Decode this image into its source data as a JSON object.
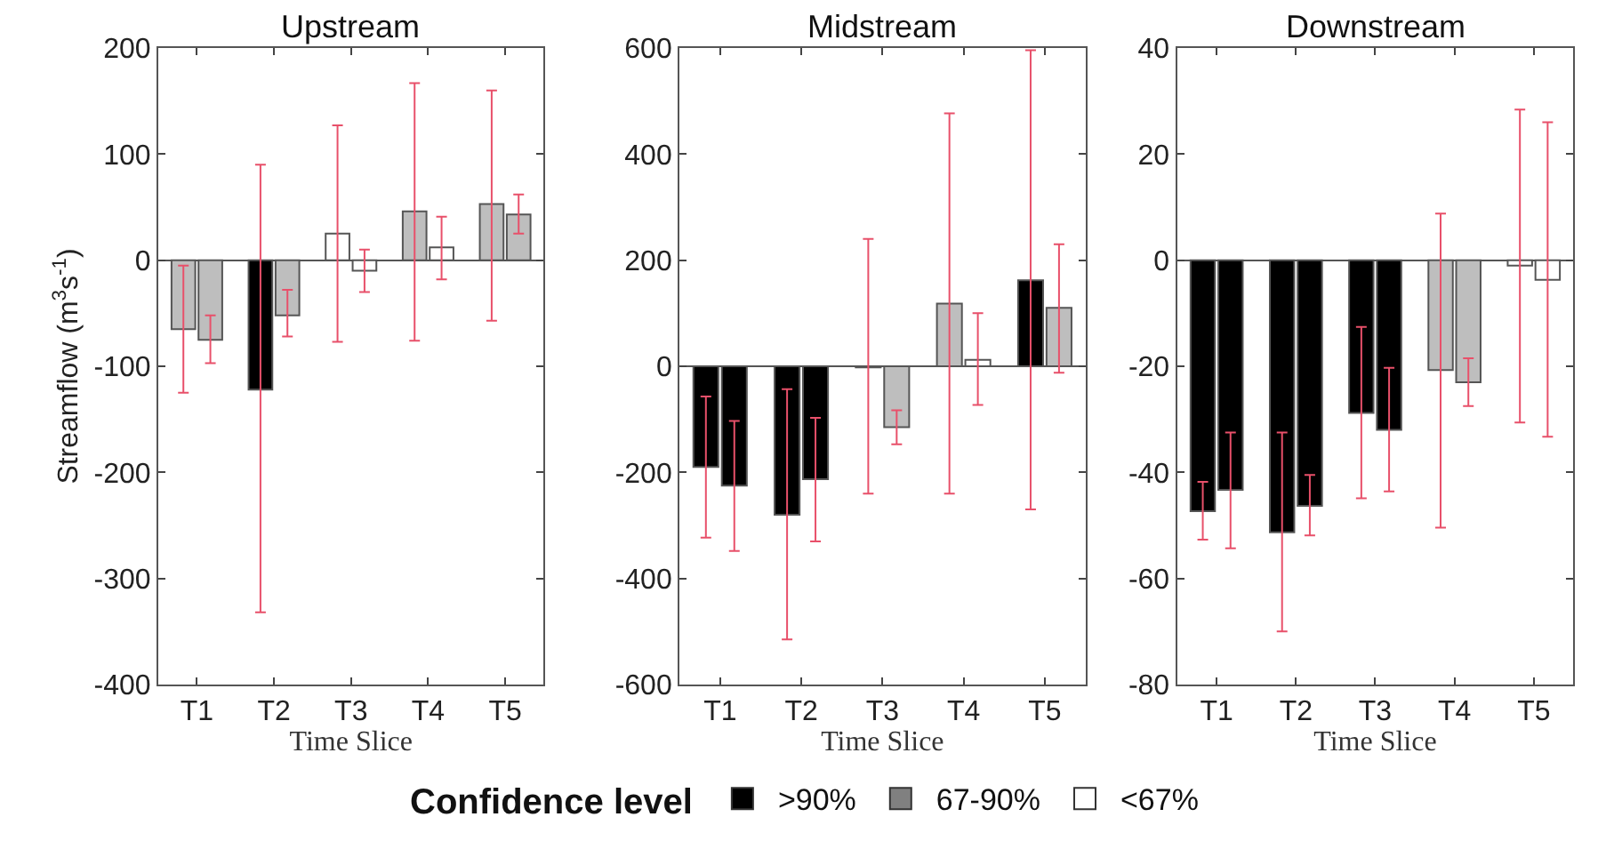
{
  "chart_data": [
    {
      "type": "bar",
      "title": "Upstream",
      "xlabel": "Time Slice",
      "ylabel": "Streamflow (m$^{3}$s$^{-1}$)",
      "categories": [
        "T1",
        "T2",
        "T3",
        "T4",
        "T5"
      ],
      "ylim": [
        -400,
        200
      ],
      "yticks": [
        -400,
        -300,
        -200,
        -100,
        0,
        100,
        200
      ],
      "series": [
        {
          "colors": [
            "#bebebe",
            "#000000",
            "#ffffff",
            "#bebebe",
            "#bebebe"
          ],
          "values": [
            -65,
            -122,
            25,
            46,
            53
          ],
          "errors": [
            [
              -125,
              -5
            ],
            [
              -332,
              90
            ],
            [
              -77,
              127
            ],
            [
              -76,
              167
            ],
            [
              -57,
              160
            ]
          ]
        },
        {
          "colors": [
            "#bebebe",
            "#bebebe",
            "#ffffff",
            "#ffffff",
            "#bebebe"
          ],
          "values": [
            -75,
            -52,
            -10,
            12,
            43
          ],
          "errors": [
            [
              -97,
              -52
            ],
            [
              -72,
              -28
            ],
            [
              -30,
              10
            ],
            [
              -18,
              41
            ],
            [
              25,
              62
            ]
          ]
        }
      ]
    },
    {
      "type": "bar",
      "title": "Midstream",
      "xlabel": "Time Slice",
      "categories": [
        "T1",
        "T2",
        "T3",
        "T4",
        "T5"
      ],
      "ylim": [
        -600,
        600
      ],
      "yticks": [
        -600,
        -400,
        -200,
        0,
        200,
        400,
        600
      ],
      "series": [
        {
          "colors": [
            "#000000",
            "#000000",
            "#ffffff",
            "#bebebe",
            "#000000"
          ],
          "values": [
            -190,
            -280,
            -2,
            118,
            162
          ],
          "errors": [
            [
              -323,
              -57
            ],
            [
              -515,
              -43
            ],
            [
              -240,
              240
            ],
            [
              -240,
              477
            ],
            [
              -270,
              596
            ]
          ]
        },
        {
          "colors": [
            "#000000",
            "#000000",
            "#bebebe",
            "#ffffff",
            "#bebebe"
          ],
          "values": [
            -225,
            -213,
            -115,
            12,
            110
          ],
          "errors": [
            [
              -348,
              -103
            ],
            [
              -330,
              -97
            ],
            [
              -147,
              -83
            ],
            [
              -73,
              100
            ],
            [
              -12,
              230
            ]
          ]
        }
      ]
    },
    {
      "type": "bar",
      "title": "Downstream",
      "xlabel": "Time Slice",
      "categories": [
        "T1",
        "T2",
        "T3",
        "T4",
        "T5"
      ],
      "ylim": [
        -80,
        40
      ],
      "yticks": [
        -80,
        -60,
        -40,
        -20,
        0,
        20,
        40
      ],
      "series": [
        {
          "colors": [
            "#000000",
            "#000000",
            "#000000",
            "#bebebe",
            "#ffffff"
          ],
          "values": [
            -47.3,
            -51.3,
            -28.8,
            -20.7,
            -1.0
          ],
          "errors": [
            [
              -52.7,
              -41.8
            ],
            [
              -70,
              -32.5
            ],
            [
              -44.9,
              -12.6
            ],
            [
              -50.4,
              8.8
            ],
            [
              -30.6,
              28.4
            ]
          ]
        },
        {
          "colors": [
            "#000000",
            "#000000",
            "#000000",
            "#bebebe",
            "#ffffff"
          ],
          "values": [
            -43.3,
            -46.3,
            -32.0,
            -23.0,
            -3.7
          ],
          "errors": [
            [
              -54.3,
              -32.5
            ],
            [
              -51.9,
              -40.5
            ],
            [
              -43.6,
              -20.3
            ],
            [
              -27.5,
              -18.5
            ],
            [
              -33.3,
              26.0
            ]
          ]
        }
      ]
    },
    {
      "type": "other",
      "legend_title": "Confidence level",
      "categories": [
        ">90%",
        "67-90%",
        "<67%"
      ],
      "colors": [
        "#000000",
        "#808080",
        "#ffffff"
      ]
    }
  ]
}
